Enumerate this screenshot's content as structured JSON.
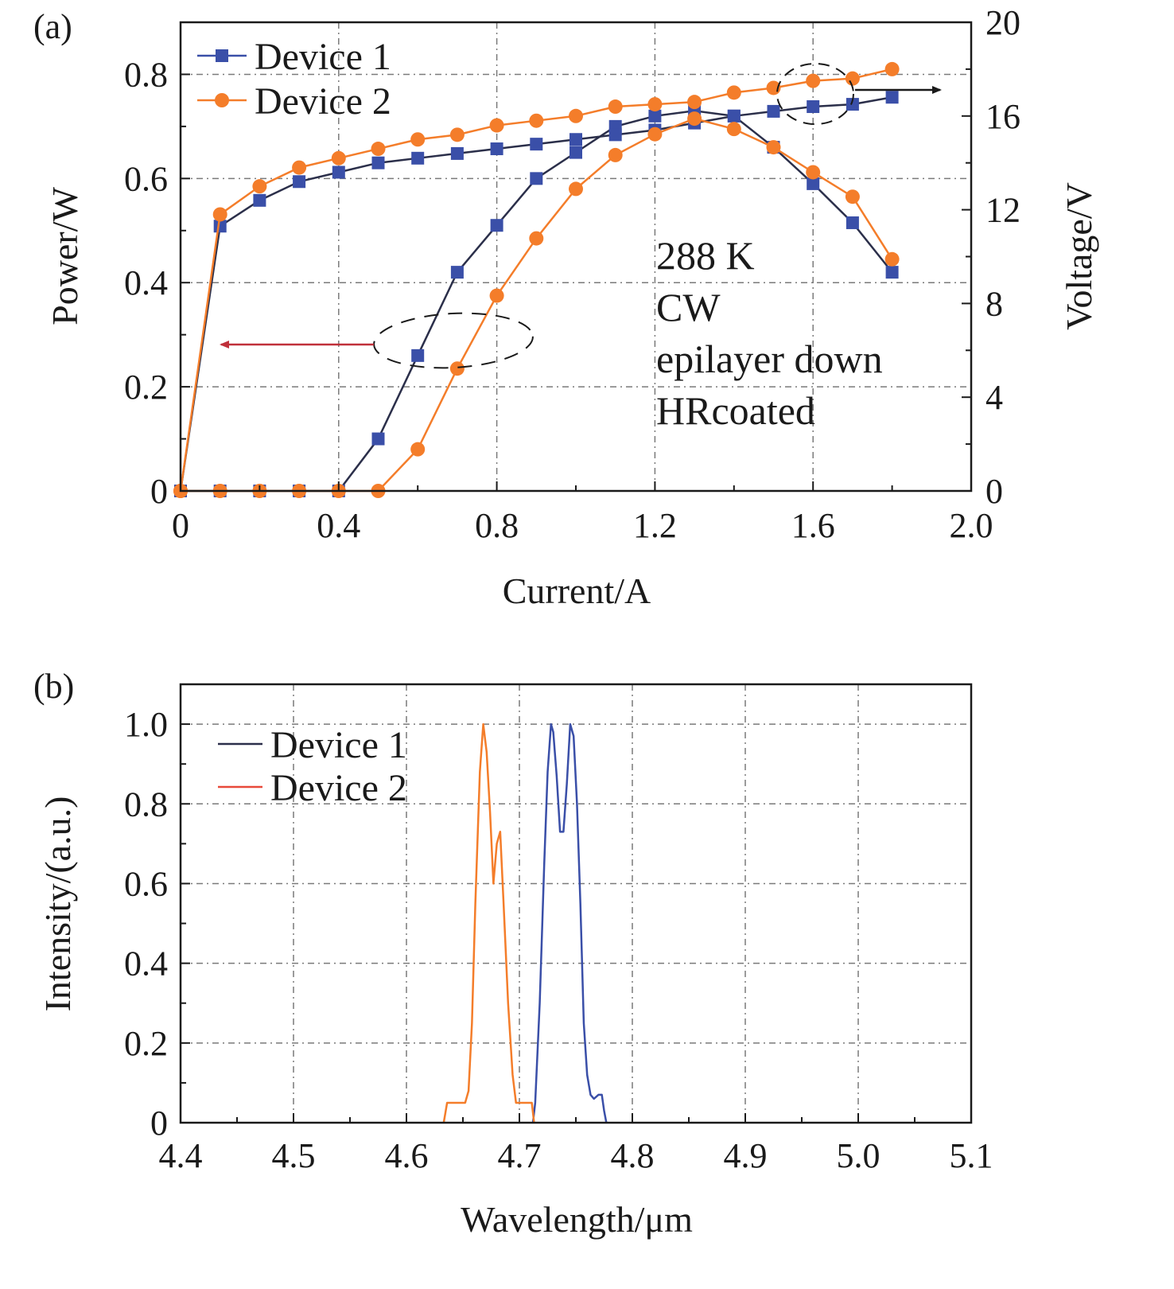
{
  "chart_data": [
    {
      "panel_label": "(a)",
      "type": "line",
      "xlabel": "Current/A",
      "ylabel": "Power/W",
      "y2label": "Voltage/V",
      "xlim": [
        0,
        2.0
      ],
      "ylim": [
        0,
        0.9
      ],
      "y2lim": [
        0,
        20
      ],
      "x_ticks": [
        "0",
        "0.4",
        "0.8",
        "1.2",
        "1.6",
        "2.0"
      ],
      "y_ticks": [
        "0",
        "0.2",
        "0.4",
        "0.6",
        "0.8"
      ],
      "y2_ticks": [
        "0",
        "4",
        "8",
        "12",
        "16",
        "20"
      ],
      "grid": true,
      "legend_position": "top-left",
      "annotation_lines": [
        "288 K",
        "CW",
        "epilayer down",
        "HRcoated"
      ],
      "series": [
        {
          "name": "Device 1",
          "marker": "square",
          "color": "#3a4fa8",
          "power_x": [
            0,
            0.1,
            0.2,
            0.3,
            0.4,
            0.5,
            0.6,
            0.7,
            0.8,
            0.9,
            1.0,
            1.1,
            1.2,
            1.3,
            1.4,
            1.5,
            1.6,
            1.7,
            1.8
          ],
          "power_y": [
            0,
            0,
            0,
            0,
            0,
            0.1,
            0.26,
            0.42,
            0.51,
            0.6,
            0.65,
            0.7,
            0.72,
            0.73,
            0.72,
            0.66,
            0.59,
            0.515,
            0.42
          ],
          "voltage_x": [
            0,
            0.1,
            0.2,
            0.3,
            0.4,
            0.5,
            0.6,
            0.7,
            0.8,
            0.9,
            1.0,
            1.1,
            1.2,
            1.3,
            1.4,
            1.5,
            1.6,
            1.7,
            1.8
          ],
          "voltage_y": [
            0,
            11.3,
            12.4,
            13.2,
            13.6,
            14.0,
            14.2,
            14.4,
            14.6,
            14.8,
            15.0,
            15.2,
            15.4,
            15.7,
            16.0,
            16.2,
            16.4,
            16.5,
            16.8
          ]
        },
        {
          "name": "Device 2",
          "marker": "circle",
          "color": "#f47d2a",
          "power_x": [
            0,
            0.1,
            0.2,
            0.3,
            0.4,
            0.5,
            0.6,
            0.7,
            0.8,
            0.9,
            1.0,
            1.1,
            1.2,
            1.3,
            1.4,
            1.5,
            1.6,
            1.7,
            1.8
          ],
          "power_y": [
            0,
            0,
            0,
            0,
            0,
            0,
            0.08,
            0.235,
            0.375,
            0.485,
            0.58,
            0.645,
            0.685,
            0.715,
            0.695,
            0.66,
            0.612,
            0.565,
            0.445
          ],
          "voltage_x": [
            0,
            0.1,
            0.2,
            0.3,
            0.4,
            0.5,
            0.6,
            0.7,
            0.8,
            0.9,
            1.0,
            1.1,
            1.2,
            1.3,
            1.4,
            1.5,
            1.6,
            1.7,
            1.8
          ],
          "voltage_y": [
            0,
            11.8,
            13.0,
            13.8,
            14.2,
            14.6,
            15.0,
            15.2,
            15.6,
            15.8,
            16.0,
            16.4,
            16.5,
            16.6,
            17.0,
            17.2,
            17.5,
            17.6,
            18.0
          ]
        }
      ]
    },
    {
      "panel_label": "(b)",
      "type": "line",
      "xlabel": "Wavelength/μm",
      "ylabel": "Intensity/(a.u.)",
      "xlim": [
        4.4,
        5.1
      ],
      "ylim": [
        0,
        1.1
      ],
      "x_ticks": [
        "4.4",
        "4.5",
        "4.6",
        "4.7",
        "4.8",
        "4.9",
        "5.0",
        "5.1"
      ],
      "y_ticks": [
        "0",
        "0.2",
        "0.4",
        "0.6",
        "0.8",
        "1.0"
      ],
      "grid": true,
      "legend_position": "top-left",
      "series": [
        {
          "name": "Device 1",
          "color": "#3a4fa8",
          "x": [
            4.712,
            4.714,
            4.718,
            4.722,
            4.725,
            4.728,
            4.73,
            4.733,
            4.736,
            4.739,
            4.742,
            4.745,
            4.748,
            4.751,
            4.754,
            4.757,
            4.76,
            4.763,
            4.766,
            4.77,
            4.773,
            4.775,
            4.777
          ],
          "y": [
            0,
            0.05,
            0.3,
            0.65,
            0.88,
            1.0,
            0.98,
            0.87,
            0.73,
            0.73,
            0.85,
            1.0,
            0.97,
            0.8,
            0.55,
            0.25,
            0.12,
            0.07,
            0.06,
            0.07,
            0.07,
            0.03,
            0
          ]
        },
        {
          "name": "Device 2",
          "color": "#f47d2a",
          "x": [
            4.633,
            4.636,
            4.642,
            4.648,
            4.652,
            4.655,
            4.658,
            4.661,
            4.665,
            4.668,
            4.671,
            4.674,
            4.677,
            4.68,
            4.683,
            4.686,
            4.69,
            4.694,
            4.697,
            4.702,
            4.707,
            4.711,
            4.713
          ],
          "y": [
            0,
            0.05,
            0.05,
            0.05,
            0.05,
            0.08,
            0.25,
            0.55,
            0.88,
            1.0,
            0.93,
            0.78,
            0.6,
            0.7,
            0.73,
            0.55,
            0.3,
            0.12,
            0.05,
            0.05,
            0.05,
            0.05,
            0
          ]
        }
      ]
    }
  ]
}
